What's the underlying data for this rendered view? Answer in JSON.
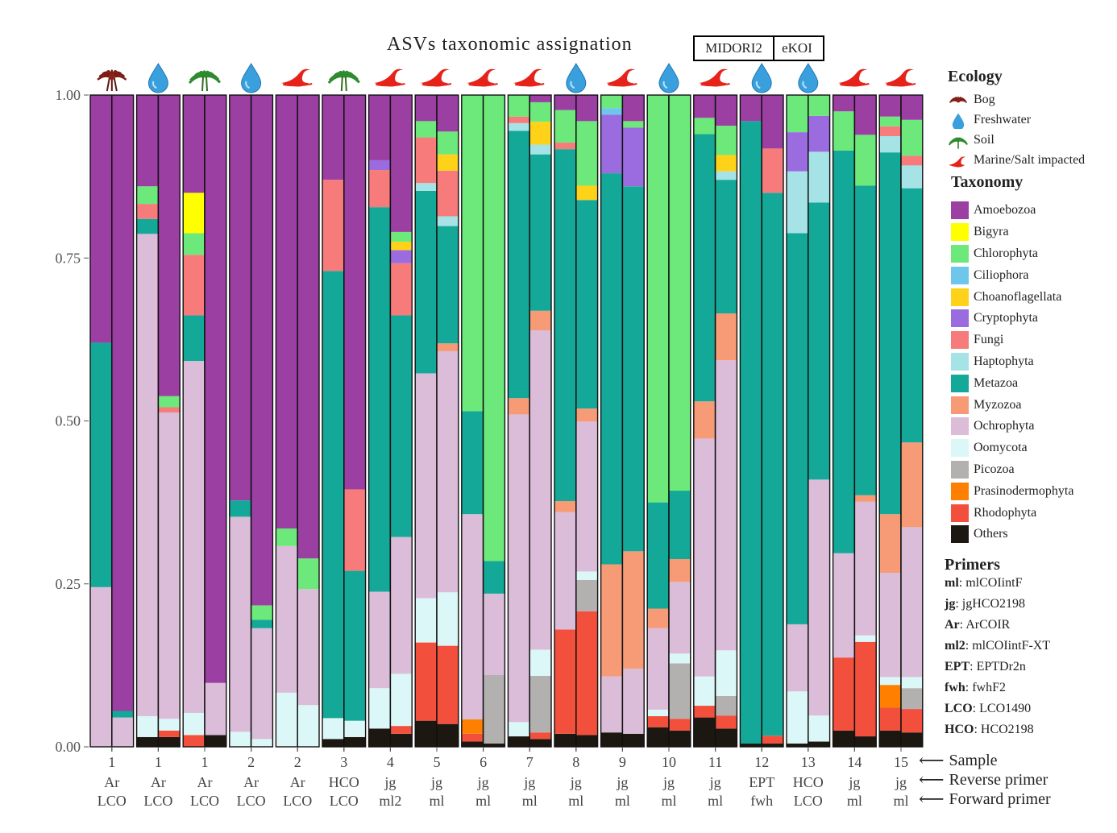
{
  "chart_data": {
    "type": "bar",
    "title": "ASVs taxonomic assignation",
    "databases": [
      "MIDORI2",
      "eKOI"
    ],
    "ylim": [
      0,
      1
    ],
    "yticks": [
      "0.00",
      "0.25",
      "0.50",
      "0.75",
      "1.00"
    ],
    "taxa": [
      "Others",
      "Rhodophyta",
      "Prasinodermophyta",
      "Picozoa",
      "Oomycota",
      "Ochrophyta",
      "Myzozoa",
      "Metazoa",
      "Haptophyta",
      "Fungi",
      "Cryptophyta",
      "Choanoflagellata",
      "Ciliophora",
      "Chlorophyta",
      "Bigyra",
      "Amoebozoa"
    ],
    "taxa_legend_order": [
      "Amoebozoa",
      "Bigyra",
      "Chlorophyta",
      "Ciliophora",
      "Choanoflagellata",
      "Cryptophyta",
      "Fungi",
      "Haptophyta",
      "Metazoa",
      "Myzozoa",
      "Ochrophyta",
      "Oomycota",
      "Picozoa",
      "Prasinodermophyta",
      "Rhodophyta",
      "Others"
    ],
    "colors": {
      "Amoebozoa": "#9b3fa3",
      "Bigyra": "#ffff00",
      "Chlorophyta": "#6de87a",
      "Ciliophora": "#6ec6ec",
      "Choanoflagellata": "#ffd21a",
      "Cryptophyta": "#9b6be0",
      "Fungi": "#f77b7b",
      "Haptophyta": "#a6e3e6",
      "Metazoa": "#13a897",
      "Myzozoa": "#f79a76",
      "Ochrophyta": "#dbbcd9",
      "Oomycota": "#dcf7f7",
      "Picozoa": "#b3b0b0",
      "Prasinodermophyta": "#ff8000",
      "Rhodophyta": "#f2503c",
      "Others": "#1d1711"
    },
    "groups": [
      {
        "sample": "1",
        "reverse": "Ar",
        "forward": "LCO",
        "ecology": "Bog",
        "bars": [
          {
            "Ochrophyta": 0.245,
            "Metazoa": 0.375,
            "Amoebozoa": 0.38
          },
          {
            "Ochrophyta": 0.045,
            "Metazoa": 0.01,
            "Amoebozoa": 0.945
          }
        ]
      },
      {
        "sample": "1",
        "reverse": "Ar",
        "forward": "LCO",
        "ecology": "Freshwater",
        "bars": [
          {
            "Others": 0.015,
            "Oomycota": 0.032,
            "Ochrophyta": 0.74,
            "Metazoa": 0.023,
            "Fungi": 0.023,
            "Chlorophyta": 0.027,
            "Amoebozoa": 0.14
          },
          {
            "Others": 0.015,
            "Oomycota": 0.018,
            "Ochrophyta": 0.47,
            "Rhodophyta": 0.01,
            "Fungi": 0.008,
            "Chlorophyta": 0.017,
            "Amoebozoa": 0.462
          }
        ]
      },
      {
        "sample": "1",
        "reverse": "Ar",
        "forward": "LCO",
        "ecology": "Soil",
        "bars": [
          {
            "Rhodophyta": 0.018,
            "Oomycota": 0.034,
            "Ochrophyta": 0.54,
            "Metazoa": 0.07,
            "Fungi": 0.093,
            "Chlorophyta": 0.033,
            "Bigyra": 0.062,
            "Amoebozoa": 0.15
          },
          {
            "Others": 0.018,
            "Ochrophyta": 0.08,
            "Amoebozoa": 0.902
          }
        ]
      },
      {
        "sample": "2",
        "reverse": "Ar",
        "forward": "LCO",
        "ecology": "Freshwater",
        "bars": [
          {
            "Oomycota": 0.023,
            "Ochrophyta": 0.33,
            "Metazoa": 0.025,
            "Amoebozoa": 0.622
          },
          {
            "Oomycota": 0.012,
            "Ochrophyta": 0.17,
            "Metazoa": 0.013,
            "Chlorophyta": 0.022,
            "Amoebozoa": 0.783
          }
        ]
      },
      {
        "sample": "2",
        "reverse": "Ar",
        "forward": "LCO",
        "ecology": "Marine/Salt impacted",
        "bars": [
          {
            "Oomycota": 0.083,
            "Ochrophyta": 0.225,
            "Chlorophyta": 0.027,
            "Amoebozoa": 0.665
          },
          {
            "Oomycota": 0.064,
            "Ochrophyta": 0.178,
            "Chlorophyta": 0.047,
            "Amoebozoa": 0.711
          }
        ]
      },
      {
        "sample": "3",
        "reverse": "HCO",
        "forward": "LCO",
        "ecology": "Soil",
        "bars": [
          {
            "Others": 0.012,
            "Oomycota": 0.032,
            "Metazoa": 0.686,
            "Fungi": 0.14,
            "Amoebozoa": 0.13
          },
          {
            "Others": 0.015,
            "Oomycota": 0.025,
            "Metazoa": 0.23,
            "Fungi": 0.125,
            "Amoebozoa": 0.605
          }
        ]
      },
      {
        "sample": "4",
        "reverse": "jg",
        "forward": "ml2",
        "ecology": "Marine/Salt impacted",
        "bars": [
          {
            "Others": 0.028,
            "Oomycota": 0.062,
            "Ochrophyta": 0.148,
            "Metazoa": 0.59,
            "Fungi": 0.057,
            "Cryptophyta": 0.015,
            "Amoebozoa": 0.1
          },
          {
            "Others": 0.02,
            "Rhodophyta": 0.012,
            "Oomycota": 0.08,
            "Ochrophyta": 0.21,
            "Metazoa": 0.34,
            "Fungi": 0.08,
            "Cryptophyta": 0.02,
            "Choanoflagellata": 0.013,
            "Chlorophyta": 0.015,
            "Amoebozoa": 0.21
          }
        ]
      },
      {
        "sample": "5",
        "reverse": "jg",
        "forward": "ml",
        "ecology": "Marine/Salt impacted",
        "bars": [
          {
            "Others": 0.04,
            "Rhodophyta": 0.12,
            "Oomycota": 0.068,
            "Ochrophyta": 0.345,
            "Metazoa": 0.28,
            "Haptophyta": 0.012,
            "Fungi": 0.07,
            "Chlorophyta": 0.025,
            "Amoebozoa": 0.04
          },
          {
            "Others": 0.035,
            "Rhodophyta": 0.12,
            "Oomycota": 0.082,
            "Ochrophyta": 0.37,
            "Myzozoa": 0.012,
            "Metazoa": 0.18,
            "Haptophyta": 0.015,
            "Fungi": 0.07,
            "Choanoflagellata": 0.025,
            "Chlorophyta": 0.035,
            "Amoebozoa": 0.056
          }
        ]
      },
      {
        "sample": "6",
        "reverse": "jg",
        "forward": "ml",
        "ecology": "Marine/Salt impacted",
        "bars": [
          {
            "Others": 0.008,
            "Rhodophyta": 0.012,
            "Prasinodermophyta": 0.022,
            "Ochrophyta": 0.315,
            "Metazoa": 0.158,
            "Chlorophyta": 0.485
          },
          {
            "Others": 0.005,
            "Picozoa": 0.105,
            "Ochrophyta": 0.125,
            "Metazoa": 0.05,
            "Chlorophyta": 0.715
          }
        ]
      },
      {
        "sample": "7",
        "reverse": "jg",
        "forward": "ml",
        "ecology": "Marine/Salt impacted",
        "bars": [
          {
            "Others": 0.016,
            "Oomycota": 0.022,
            "Ochrophyta": 0.472,
            "Myzozoa": 0.025,
            "Metazoa": 0.41,
            "Haptophyta": 0.012,
            "Fungi": 0.01,
            "Chlorophyta": 0.033
          },
          {
            "Others": 0.012,
            "Rhodophyta": 0.01,
            "Picozoa": 0.087,
            "Oomycota": 0.04,
            "Ochrophyta": 0.49,
            "Myzozoa": 0.03,
            "Metazoa": 0.24,
            "Haptophyta": 0.015,
            "Choanoflagellata": 0.035,
            "Chlorophyta": 0.03,
            "Amoebozoa": 0.011
          }
        ]
      },
      {
        "sample": "8",
        "reverse": "jg",
        "forward": "ml",
        "ecology": "Freshwater",
        "bars": [
          {
            "Others": 0.02,
            "Rhodophyta": 0.16,
            "Ochrophyta": 0.18,
            "Myzozoa": 0.017,
            "Metazoa": 0.54,
            "Fungi": 0.01,
            "Chlorophyta": 0.05,
            "Amoebozoa": 0.023
          },
          {
            "Others": 0.018,
            "Rhodophyta": 0.19,
            "Picozoa": 0.048,
            "Oomycota": 0.013,
            "Ochrophyta": 0.23,
            "Myzozoa": 0.02,
            "Metazoa": 0.32,
            "Choanoflagellata": 0.022,
            "Chlorophyta": 0.099,
            "Amoebozoa": 0.04
          }
        ]
      },
      {
        "sample": "9",
        "reverse": "jg",
        "forward": "ml",
        "ecology": "Marine/Salt impacted",
        "bars": [
          {
            "Others": 0.022,
            "Ochrophyta": 0.086,
            "Myzozoa": 0.172,
            "Metazoa": 0.6,
            "Cryptophyta": 0.09,
            "Ciliophora": 0.01,
            "Chlorophyta": 0.02
          },
          {
            "Others": 0.02,
            "Ochrophyta": 0.1,
            "Myzozoa": 0.18,
            "Metazoa": 0.56,
            "Cryptophyta": 0.09,
            "Chlorophyta": 0.01,
            "Amoebozoa": 0.04
          }
        ]
      },
      {
        "sample": "10",
        "reverse": "jg",
        "forward": "ml",
        "ecology": "Freshwater",
        "bars": [
          {
            "Others": 0.03,
            "Rhodophyta": 0.017,
            "Oomycota": 0.01,
            "Ochrophyta": 0.125,
            "Myzozoa": 0.03,
            "Metazoa": 0.163,
            "Chlorophyta": 0.625
          },
          {
            "Others": 0.025,
            "Rhodophyta": 0.018,
            "Picozoa": 0.085,
            "Oomycota": 0.015,
            "Ochrophyta": 0.11,
            "Myzozoa": 0.035,
            "Metazoa": 0.105,
            "Chlorophyta": 0.607
          }
        ]
      },
      {
        "sample": "11",
        "reverse": "jg",
        "forward": "ml",
        "ecology": "Marine/Salt impacted",
        "bars": [
          {
            "Others": 0.045,
            "Rhodophyta": 0.018,
            "Oomycota": 0.045,
            "Ochrophyta": 0.365,
            "Myzozoa": 0.057,
            "Metazoa": 0.41,
            "Chlorophyta": 0.025,
            "Amoebozoa": 0.035
          },
          {
            "Others": 0.028,
            "Rhodophyta": 0.02,
            "Picozoa": 0.03,
            "Oomycota": 0.07,
            "Ochrophyta": 0.445,
            "Myzozoa": 0.072,
            "Metazoa": 0.205,
            "Haptophyta": 0.013,
            "Choanoflagellata": 0.025,
            "Chlorophyta": 0.045,
            "Amoebozoa": 0.047
          }
        ]
      },
      {
        "sample": "12",
        "reverse": "EPT",
        "forward": "fwh",
        "ecology": "Freshwater",
        "bars": [
          {
            "Others": 0.005,
            "Metazoa": 0.955,
            "Amoebozoa": 0.04
          },
          {
            "Others": 0.005,
            "Rhodophyta": 0.012,
            "Metazoa": 0.833,
            "Fungi": 0.068,
            "Amoebozoa": 0.082
          }
        ]
      },
      {
        "sample": "13",
        "reverse": "HCO",
        "forward": "LCO",
        "ecology": "Freshwater",
        "bars": [
          {
            "Others": 0.005,
            "Oomycota": 0.08,
            "Ochrophyta": 0.103,
            "Metazoa": 0.6,
            "Haptophyta": 0.095,
            "Cryptophyta": 0.06,
            "Chlorophyta": 0.057
          },
          {
            "Others": 0.008,
            "Oomycota": 0.04,
            "Ochrophyta": 0.362,
            "Metazoa": 0.425,
            "Haptophyta": 0.078,
            "Cryptophyta": 0.055,
            "Chlorophyta": 0.032
          }
        ]
      },
      {
        "sample": "14",
        "reverse": "jg",
        "forward": "ml",
        "ecology": "Marine/Salt impacted",
        "bars": [
          {
            "Others": 0.025,
            "Rhodophyta": 0.112,
            "Ochrophyta": 0.16,
            "Metazoa": 0.618,
            "Chlorophyta": 0.06,
            "Amoebozoa": 0.025
          },
          {
            "Others": 0.016,
            "Rhodophyta": 0.145,
            "Oomycota": 0.01,
            "Ochrophyta": 0.205,
            "Myzozoa": 0.01,
            "Metazoa": 0.475,
            "Chlorophyta": 0.078,
            "Amoebozoa": 0.061
          }
        ]
      },
      {
        "sample": "15",
        "reverse": "jg",
        "forward": "ml",
        "ecology": "Marine/Salt impacted",
        "bars": [
          {
            "Others": 0.025,
            "Rhodophyta": 0.035,
            "Prasinodermophyta": 0.035,
            "Oomycota": 0.012,
            "Ochrophyta": 0.16,
            "Myzozoa": 0.09,
            "Metazoa": 0.555,
            "Haptophyta": 0.025,
            "Fungi": 0.015,
            "Chlorophyta": 0.015,
            "Amoebozoa": 0.033
          },
          {
            "Others": 0.022,
            "Rhodophyta": 0.036,
            "Picozoa": 0.032,
            "Oomycota": 0.017,
            "Ochrophyta": 0.23,
            "Myzozoa": 0.13,
            "Metazoa": 0.39,
            "Haptophyta": 0.035,
            "Fungi": 0.015,
            "Chlorophyta": 0.055,
            "Amoebozoa": 0.038
          }
        ]
      }
    ],
    "row_labels": [
      "Sample",
      "Reverse primer",
      "Forward primer"
    ]
  },
  "legend": {
    "ecology_title": "Ecology",
    "ecology_items": [
      {
        "label": "Bog",
        "icon": "bog-icon"
      },
      {
        "label": "Freshwater",
        "icon": "freshwater-icon"
      },
      {
        "label": "Soil",
        "icon": "soil-icon"
      },
      {
        "label": "Marine/Salt impacted",
        "icon": "marine-icon"
      }
    ],
    "taxonomy_title": "Taxonomy",
    "primers_title": "Primers",
    "primers": [
      {
        "abbr": "ml",
        "name": ": mlCOIintF"
      },
      {
        "abbr": "jg",
        "name": ": jgHCO2198"
      },
      {
        "abbr": "Ar",
        "name": ": ArCOIR"
      },
      {
        "abbr": "ml2",
        "name": ": mlCOIintF-XT"
      },
      {
        "abbr": "EPT",
        "name": ": EPTDr2n"
      },
      {
        "abbr": "fwh",
        "name": ": fwhF2"
      },
      {
        "abbr": "LCO",
        "name": ": LCO1490"
      },
      {
        "abbr": "HCO",
        "name": ": HCO2198"
      }
    ]
  }
}
